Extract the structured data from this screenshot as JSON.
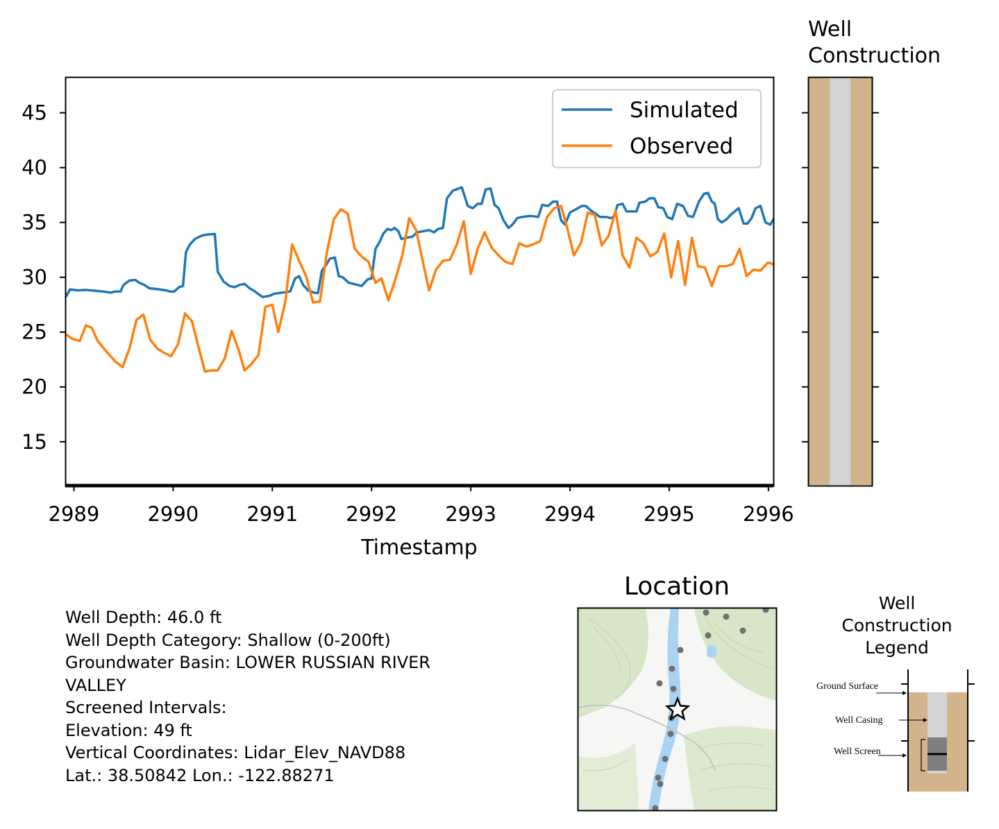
{
  "chart_data": {
    "type": "line",
    "xlabel": "Timestamp",
    "ylabel": "",
    "xlim": [
      2988.92,
      2996.05
    ],
    "ylim": [
      11,
      48.2
    ],
    "x_ticks": [
      2989,
      2990,
      2991,
      2992,
      2993,
      2994,
      2995,
      2996
    ],
    "y_ticks": [
      15,
      20,
      25,
      30,
      35,
      40,
      45
    ],
    "grid": false,
    "legend_position": "top-right",
    "series": [
      {
        "name": "Simulated",
        "color": "#1f77b4",
        "points": [
          [
            2988.92,
            28.2
          ],
          [
            2988.96,
            28.9
          ],
          [
            2989.04,
            28.8
          ],
          [
            2989.12,
            28.85
          ],
          [
            2989.3,
            28.7
          ],
          [
            2989.37,
            28.6
          ],
          [
            2989.42,
            28.7
          ],
          [
            2989.47,
            28.7
          ],
          [
            2989.5,
            29.3
          ],
          [
            2989.56,
            29.7
          ],
          [
            2989.62,
            29.75
          ],
          [
            2989.66,
            29.5
          ],
          [
            2989.71,
            29.3
          ],
          [
            2989.76,
            29.0
          ],
          [
            2989.86,
            28.9
          ],
          [
            2989.93,
            28.8
          ],
          [
            2989.97,
            28.7
          ],
          [
            2990.01,
            28.7
          ],
          [
            2990.06,
            29.1
          ],
          [
            2990.1,
            29.2
          ],
          [
            2990.13,
            32.3
          ],
          [
            2990.17,
            33.0
          ],
          [
            2990.22,
            33.5
          ],
          [
            2990.29,
            33.8
          ],
          [
            2990.35,
            33.9
          ],
          [
            2990.42,
            33.95
          ],
          [
            2990.45,
            30.5
          ],
          [
            2990.51,
            29.6
          ],
          [
            2990.57,
            29.2
          ],
          [
            2990.62,
            29.1
          ],
          [
            2990.67,
            29.3
          ],
          [
            2990.72,
            29.4
          ],
          [
            2990.77,
            29.0
          ],
          [
            2990.81,
            28.8
          ],
          [
            2990.87,
            28.4
          ],
          [
            2990.9,
            28.2
          ],
          [
            2990.97,
            28.3
          ],
          [
            2991.02,
            28.5
          ],
          [
            2991.1,
            28.6
          ],
          [
            2991.18,
            28.7
          ],
          [
            2991.23,
            29.9
          ],
          [
            2991.27,
            30.1
          ],
          [
            2991.31,
            29.3
          ],
          [
            2991.36,
            28.8
          ],
          [
            2991.42,
            28.6
          ],
          [
            2991.46,
            28.55
          ],
          [
            2991.5,
            30.6
          ],
          [
            2991.54,
            31.1
          ],
          [
            2991.58,
            31.7
          ],
          [
            2991.63,
            31.8
          ],
          [
            2991.67,
            30.1
          ],
          [
            2991.71,
            30.0
          ],
          [
            2991.77,
            29.5
          ],
          [
            2991.86,
            29.3
          ],
          [
            2991.9,
            29.2
          ],
          [
            2991.96,
            29.8
          ],
          [
            2992.0,
            29.9
          ],
          [
            2992.04,
            32.6
          ],
          [
            2992.08,
            33.2
          ],
          [
            2992.12,
            34.0
          ],
          [
            2992.16,
            34.4
          ],
          [
            2992.2,
            34.3
          ],
          [
            2992.23,
            34.5
          ],
          [
            2992.27,
            34.2
          ],
          [
            2992.3,
            33.5
          ],
          [
            2992.35,
            33.6
          ],
          [
            2992.41,
            33.7
          ],
          [
            2992.46,
            34.1
          ],
          [
            2992.52,
            34.2
          ],
          [
            2992.58,
            34.3
          ],
          [
            2992.63,
            34.1
          ],
          [
            2992.67,
            34.4
          ],
          [
            2992.72,
            34.5
          ],
          [
            2992.76,
            37.2
          ],
          [
            2992.82,
            37.9
          ],
          [
            2992.88,
            38.1
          ],
          [
            2992.91,
            38.2
          ],
          [
            2992.97,
            36.5
          ],
          [
            2993.02,
            36.3
          ],
          [
            2993.07,
            36.7
          ],
          [
            2993.11,
            36.7
          ],
          [
            2993.15,
            38.0
          ],
          [
            2993.2,
            38.1
          ],
          [
            2993.24,
            36.6
          ],
          [
            2993.28,
            36.3
          ],
          [
            2993.33,
            35.2
          ],
          [
            2993.38,
            34.5
          ],
          [
            2993.42,
            34.8
          ],
          [
            2993.47,
            35.4
          ],
          [
            2993.52,
            35.5
          ],
          [
            2993.6,
            35.6
          ],
          [
            2993.68,
            35.5
          ],
          [
            2993.72,
            36.6
          ],
          [
            2993.78,
            36.5
          ],
          [
            2993.83,
            36.9
          ],
          [
            2993.87,
            36.9
          ],
          [
            2993.91,
            35.2
          ],
          [
            2993.95,
            34.8
          ],
          [
            2994.0,
            35.9
          ],
          [
            2994.06,
            36.2
          ],
          [
            2994.12,
            36.5
          ],
          [
            2994.16,
            36.5
          ],
          [
            2994.21,
            36.1
          ],
          [
            2994.26,
            35.8
          ],
          [
            2994.3,
            35.5
          ],
          [
            2994.36,
            35.5
          ],
          [
            2994.41,
            35.4
          ],
          [
            2994.44,
            35.5
          ],
          [
            2994.48,
            36.6
          ],
          [
            2994.53,
            36.7
          ],
          [
            2994.57,
            36.0
          ],
          [
            2994.62,
            36.0
          ],
          [
            2994.67,
            36.0
          ],
          [
            2994.7,
            36.8
          ],
          [
            2994.76,
            36.9
          ],
          [
            2994.8,
            37.2
          ],
          [
            2994.85,
            37.2
          ],
          [
            2994.89,
            36.4
          ],
          [
            2994.94,
            36.3
          ],
          [
            2994.98,
            35.5
          ],
          [
            2995.03,
            35.3
          ],
          [
            2995.08,
            36.7
          ],
          [
            2995.14,
            36.5
          ],
          [
            2995.19,
            35.6
          ],
          [
            2995.24,
            35.5
          ],
          [
            2995.3,
            36.9
          ],
          [
            2995.35,
            37.6
          ],
          [
            2995.39,
            37.7
          ],
          [
            2995.43,
            36.9
          ],
          [
            2995.46,
            36.7
          ],
          [
            2995.49,
            35.3
          ],
          [
            2995.53,
            35.0
          ],
          [
            2995.58,
            35.3
          ],
          [
            2995.62,
            35.7
          ],
          [
            2995.66,
            36.0
          ],
          [
            2995.7,
            36.3
          ],
          [
            2995.75,
            34.9
          ],
          [
            2995.79,
            34.9
          ],
          [
            2995.83,
            35.4
          ],
          [
            2995.87,
            36.3
          ],
          [
            2995.92,
            36.5
          ],
          [
            2995.97,
            35.0
          ],
          [
            2996.02,
            34.8
          ],
          [
            2996.07,
            35.6
          ]
        ]
      },
      {
        "name": "Observed",
        "color": "#ff7f0e",
        "points": [
          [
            2988.92,
            24.8
          ],
          [
            2988.98,
            24.4
          ],
          [
            2989.06,
            24.2
          ],
          [
            2989.12,
            25.6
          ],
          [
            2989.18,
            25.4
          ],
          [
            2989.24,
            24.2
          ],
          [
            2989.33,
            23.2
          ],
          [
            2989.42,
            22.3
          ],
          [
            2989.49,
            21.8
          ],
          [
            2989.56,
            23.5
          ],
          [
            2989.63,
            26.1
          ],
          [
            2989.7,
            26.6
          ],
          [
            2989.77,
            24.3
          ],
          [
            2989.84,
            23.5
          ],
          [
            2989.91,
            23.1
          ],
          [
            2989.98,
            22.8
          ],
          [
            2990.05,
            23.9
          ],
          [
            2990.12,
            26.7
          ],
          [
            2990.19,
            26.0
          ],
          [
            2990.26,
            23.5
          ],
          [
            2990.32,
            21.4
          ],
          [
            2990.38,
            21.5
          ],
          [
            2990.45,
            21.5
          ],
          [
            2990.52,
            22.6
          ],
          [
            2990.59,
            25.1
          ],
          [
            2990.66,
            23.4
          ],
          [
            2990.72,
            21.5
          ],
          [
            2990.79,
            22.1
          ],
          [
            2990.86,
            22.9
          ],
          [
            2990.93,
            27.3
          ],
          [
            2991.0,
            27.5
          ],
          [
            2991.06,
            25.0
          ],
          [
            2991.13,
            27.7
          ],
          [
            2991.2,
            33.0
          ],
          [
            2991.27,
            31.5
          ],
          [
            2991.34,
            30.1
          ],
          [
            2991.41,
            27.7
          ],
          [
            2991.48,
            27.8
          ],
          [
            2991.55,
            32.3
          ],
          [
            2991.62,
            35.3
          ],
          [
            2991.69,
            36.2
          ],
          [
            2991.76,
            35.8
          ],
          [
            2991.83,
            32.6
          ],
          [
            2991.9,
            31.9
          ],
          [
            2991.97,
            31.4
          ],
          [
            2992.04,
            29.5
          ],
          [
            2992.1,
            29.9
          ],
          [
            2992.17,
            27.9
          ],
          [
            2992.24,
            29.8
          ],
          [
            2992.31,
            32.0
          ],
          [
            2992.38,
            35.4
          ],
          [
            2992.45,
            34.3
          ],
          [
            2992.52,
            31.3
          ],
          [
            2992.58,
            28.8
          ],
          [
            2992.65,
            30.7
          ],
          [
            2992.72,
            31.5
          ],
          [
            2992.79,
            31.6
          ],
          [
            2992.86,
            33.0
          ],
          [
            2992.93,
            35.1
          ],
          [
            2993.0,
            30.3
          ],
          [
            2993.07,
            32.6
          ],
          [
            2993.14,
            34.1
          ],
          [
            2993.21,
            32.7
          ],
          [
            2993.28,
            32.0
          ],
          [
            2993.35,
            31.4
          ],
          [
            2993.42,
            31.2
          ],
          [
            2993.49,
            33.1
          ],
          [
            2993.56,
            32.8
          ],
          [
            2993.63,
            33.0
          ],
          [
            2993.7,
            33.3
          ],
          [
            2993.77,
            35.5
          ],
          [
            2993.84,
            36.3
          ],
          [
            2993.91,
            36.5
          ],
          [
            2993.97,
            34.6
          ],
          [
            2994.04,
            32.0
          ],
          [
            2994.11,
            33.1
          ],
          [
            2994.18,
            35.9
          ],
          [
            2994.25,
            35.7
          ],
          [
            2994.32,
            32.9
          ],
          [
            2994.39,
            33.8
          ],
          [
            2994.46,
            36.1
          ],
          [
            2994.53,
            32.0
          ],
          [
            2994.6,
            30.9
          ],
          [
            2994.67,
            33.6
          ],
          [
            2994.74,
            33.1
          ],
          [
            2994.81,
            31.9
          ],
          [
            2994.88,
            32.3
          ],
          [
            2994.95,
            34.0
          ],
          [
            2995.02,
            30.0
          ],
          [
            2995.09,
            33.3
          ],
          [
            2995.16,
            29.3
          ],
          [
            2995.23,
            33.6
          ],
          [
            2995.29,
            31.0
          ],
          [
            2995.36,
            30.9
          ],
          [
            2995.43,
            29.2
          ],
          [
            2995.5,
            31.0
          ],
          [
            2995.57,
            31.0
          ],
          [
            2995.64,
            31.2
          ],
          [
            2995.71,
            32.6
          ],
          [
            2995.78,
            30.1
          ],
          [
            2995.85,
            30.7
          ],
          [
            2995.92,
            30.6
          ],
          [
            2995.99,
            31.3
          ],
          [
            2996.02,
            31.3
          ],
          [
            2996.08,
            31.0
          ],
          [
            2996.15,
            31.0
          ],
          [
            2996.22,
            31.0
          ],
          [
            2996.29,
            30.9
          ]
        ]
      }
    ]
  },
  "well_construction_panel": {
    "title_line1": "Well",
    "title_line2": "Construction",
    "soil_color": "#d2b48c",
    "casing_color": "#d3d3d3"
  },
  "info": {
    "lines": [
      "Well Depth: 46.0 ft",
      "Well Depth Category: Shallow (0-200ft)",
      "Groundwater Basin: LOWER RUSSIAN RIVER",
      "VALLEY",
      "Screened Intervals:",
      "Elevation: 49 ft",
      "Vertical Coordinates: Lidar_Elev_NAVD88",
      "Lat.: 38.50842 Lon.: -122.88271"
    ]
  },
  "location_map": {
    "title": "Location",
    "river_color": "#a8d4f2",
    "vegetation_color": "#d7e6c6",
    "star_icon": "star-outline"
  },
  "legend_diagram": {
    "title_line1": "Well",
    "title_line2": "Construction",
    "title_line3": "Legend",
    "ground_surface_label": "Ground Surface",
    "well_casing_label": "Well Casing",
    "well_screen_label": "Well Screen"
  }
}
